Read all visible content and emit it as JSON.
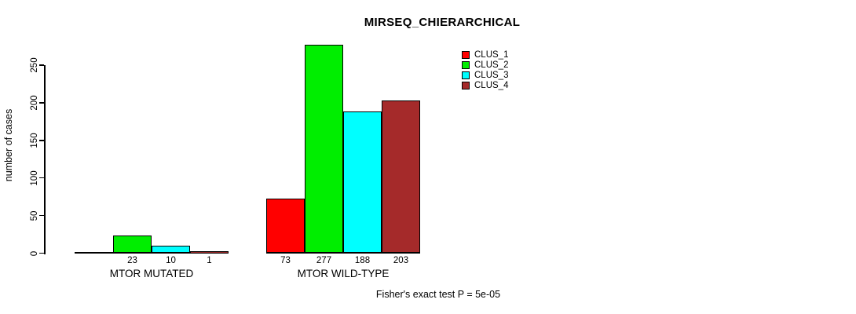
{
  "chart_data": {
    "type": "bar",
    "title": "MIRSEQ_CHIERARCHICAL",
    "ylabel": "number of cases",
    "xlabel": "",
    "ylim": [
      0,
      250
    ],
    "yticks": [
      0,
      50,
      100,
      150,
      200,
      250
    ],
    "categories": [
      "MTOR MUTATED",
      "MTOR WILD-TYPE"
    ],
    "series": [
      {
        "name": "CLUS_1",
        "color": "#FF0000",
        "values": [
          0,
          73
        ]
      },
      {
        "name": "CLUS_2",
        "color": "#00EE00",
        "values": [
          23,
          277
        ]
      },
      {
        "name": "CLUS_3",
        "color": "#00FFFF",
        "values": [
          10,
          188
        ]
      },
      {
        "name": "CLUS_4",
        "color": "#A52A2A",
        "values": [
          1,
          203
        ]
      }
    ],
    "bar_labels": [
      [
        "",
        "23",
        "10",
        "1"
      ],
      [
        "73",
        "277",
        "188",
        "203"
      ]
    ],
    "annotation": "Fisher's exact test P = 5e-05",
    "legend_position": "top-right",
    "grid": false
  }
}
